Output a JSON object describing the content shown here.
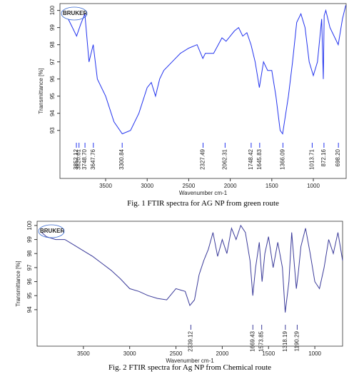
{
  "chart_data": [
    {
      "type": "line",
      "title": "Fig. 1   FTIR spectra for AG NP from green route",
      "logo": "BRUKER",
      "x_label": "Wavenumber cm-1",
      "y_label": "Transmittance [%]",
      "x": [
        3950,
        3900,
        3850,
        3800,
        3750,
        3700,
        3650,
        3600,
        3500,
        3400,
        3300,
        3200,
        3100,
        3000,
        2950,
        2900,
        2850,
        2800,
        2700,
        2600,
        2500,
        2400,
        2330,
        2300,
        2200,
        2100,
        2050,
        2000,
        1950,
        1900,
        1850,
        1800,
        1750,
        1700,
        1650,
        1600,
        1550,
        1500,
        1450,
        1400,
        1370,
        1300,
        1250,
        1200,
        1150,
        1100,
        1050,
        1000,
        950,
        900,
        880,
        870,
        850,
        800,
        750,
        700,
        650,
        610
      ],
      "series": [
        {
          "color": "#2233ee",
          "values": [
            99.5,
            99.0,
            98.5,
            99.2,
            99.8,
            97.0,
            98.0,
            96.0,
            95.0,
            93.5,
            92.8,
            93.0,
            94.0,
            95.5,
            95.8,
            95.0,
            96.0,
            96.5,
            97.0,
            97.5,
            97.8,
            98.0,
            97.2,
            97.5,
            97.5,
            98.4,
            98.2,
            98.5,
            98.8,
            99.0,
            98.5,
            98.7,
            98.0,
            97.0,
            95.5,
            97.0,
            96.5,
            96.5,
            95.0,
            93.0,
            92.8,
            95.0,
            97.0,
            99.3,
            99.8,
            99.0,
            97.0,
            96.2,
            97.0,
            99.5,
            96.0,
            99.7,
            100.0,
            99.0,
            98.5,
            98.0,
            99.5,
            100.3
          ]
        }
      ],
      "xlim": [
        4050,
        605
      ],
      "ylim": [
        90.2,
        100.4
      ],
      "xticks": [
        3500,
        3000,
        2500,
        2000,
        1500,
        1000
      ],
      "yticks": [
        93,
        94,
        95,
        96,
        97,
        98,
        99,
        100
      ],
      "peaks": [
        3852.12,
        3820.61,
        {
          "value": 3748.7,
          "label": "3748.70"
        },
        3647.76,
        3300.84,
        2327.49,
        2062.31,
        1748.42,
        1645.83,
        1366.09,
        1013.71,
        872.16,
        {
          "value": 698.2,
          "label": "698.20"
        }
      ]
    },
    {
      "type": "line",
      "title": "Fig. 2   FTIR spectra for Ag NP from Chemical route",
      "logo": "BRUKER",
      "x_label": "Wavenumber cm-1",
      "y_label": "Transmittance [%]",
      "x": [
        3950,
        3900,
        3800,
        3700,
        3600,
        3500,
        3400,
        3300,
        3200,
        3100,
        3000,
        2900,
        2800,
        2700,
        2600,
        2500,
        2400,
        2350,
        2300,
        2250,
        2200,
        2150,
        2100,
        2050,
        2000,
        1950,
        1900,
        1850,
        1800,
        1750,
        1700,
        1670,
        1640,
        1600,
        1570,
        1540,
        1500,
        1450,
        1400,
        1350,
        1320,
        1280,
        1250,
        1200,
        1180,
        1150,
        1100,
        1050,
        1000,
        950,
        900,
        850,
        800,
        750,
        700
      ],
      "series": [
        {
          "color": "#3b3b9a",
          "values": [
            99.5,
            99.2,
            99.0,
            99.0,
            98.6,
            98.2,
            97.8,
            97.3,
            96.8,
            96.2,
            95.5,
            95.3,
            95.0,
            94.8,
            94.7,
            95.5,
            95.3,
            94.3,
            94.7,
            96.5,
            97.5,
            98.3,
            99.5,
            97.8,
            99.0,
            98.0,
            99.8,
            99.0,
            100.0,
            99.5,
            97.5,
            95.0,
            97.0,
            98.8,
            96.0,
            98.0,
            99.2,
            97.0,
            98.8,
            97.0,
            93.8,
            96.0,
            99.5,
            95.5,
            96.5,
            98.5,
            99.8,
            98.0,
            96.0,
            95.5,
            97.0,
            99.0,
            98.0,
            99.5,
            97.5
          ]
        }
      ],
      "xlim": [
        4000,
        700
      ],
      "ylim": [
        91.4,
        100.3
      ],
      "xticks": [
        3500,
        3000,
        2500,
        2000,
        1500,
        1000
      ],
      "yticks": [
        94,
        95,
        96,
        97,
        98,
        99,
        100
      ],
      "peaks": [
        2339.12,
        1669.43,
        1573.85,
        1318.19,
        1190.29
      ]
    }
  ]
}
